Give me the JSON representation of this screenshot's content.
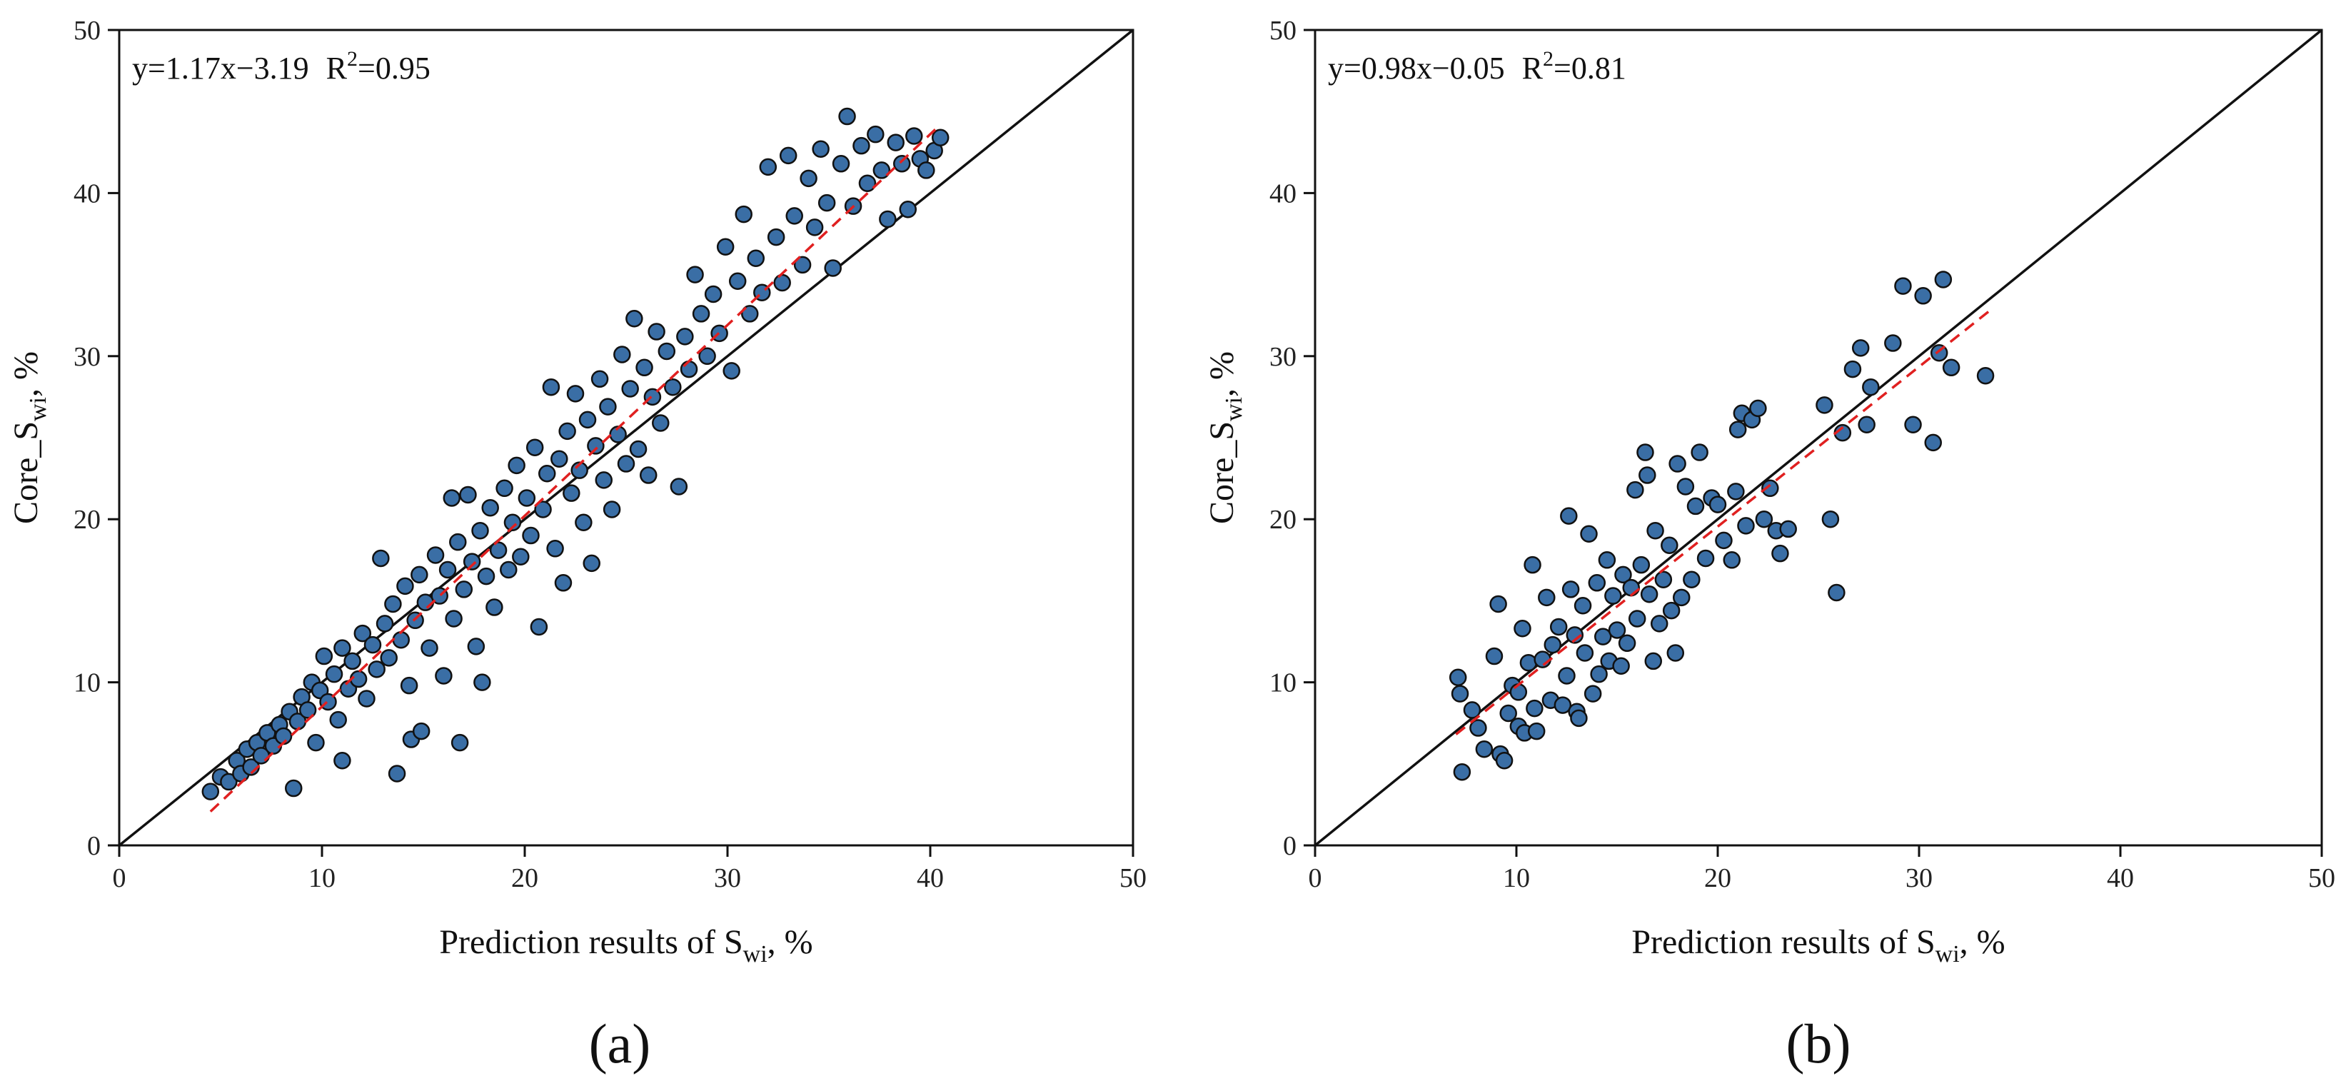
{
  "figure": {
    "panel_labels": [
      "(a)",
      "(b)"
    ]
  },
  "chart_data": [
    {
      "type": "scatter",
      "panel": "(a)",
      "title": "",
      "xlabel_main": "Prediction results of S",
      "xlabel_sub": "wi",
      "xlabel_tail": ", %",
      "ylabel_main": "Core_S",
      "ylabel_sub": "wi",
      "ylabel_tail": ", %",
      "xlim": [
        0,
        50
      ],
      "ylim": [
        0,
        50
      ],
      "xticks": [
        0,
        10,
        20,
        30,
        40,
        50
      ],
      "yticks": [
        0,
        10,
        20,
        30,
        40,
        50
      ],
      "grid": false,
      "equation": "y=1.17x−3.19",
      "r2_label": "R",
      "r2_sup": "2",
      "r2_value": "=0.95",
      "fit": {
        "slope": 1.17,
        "intercept": -3.19,
        "x_range": [
          4.5,
          40.5
        ]
      },
      "identity_line": [
        0,
        50
      ],
      "point_color": "#3a6ea5",
      "fit_color": "#e02020",
      "points": [
        [
          4.5,
          3.3
        ],
        [
          5.0,
          4.2
        ],
        [
          5.4,
          3.9
        ],
        [
          5.8,
          5.2
        ],
        [
          6.0,
          4.4
        ],
        [
          6.3,
          5.9
        ],
        [
          6.5,
          4.8
        ],
        [
          6.8,
          6.3
        ],
        [
          7.0,
          5.5
        ],
        [
          7.3,
          6.9
        ],
        [
          7.6,
          6.1
        ],
        [
          7.9,
          7.4
        ],
        [
          8.1,
          6.7
        ],
        [
          8.4,
          8.2
        ],
        [
          8.6,
          3.5
        ],
        [
          8.8,
          7.6
        ],
        [
          9.0,
          9.1
        ],
        [
          9.3,
          8.3
        ],
        [
          9.5,
          10.0
        ],
        [
          9.7,
          6.3
        ],
        [
          9.9,
          9.5
        ],
        [
          10.1,
          11.6
        ],
        [
          10.3,
          8.8
        ],
        [
          10.6,
          10.5
        ],
        [
          10.8,
          7.7
        ],
        [
          11.0,
          12.1
        ],
        [
          11.0,
          5.2
        ],
        [
          11.3,
          9.6
        ],
        [
          11.5,
          11.3
        ],
        [
          11.8,
          10.2
        ],
        [
          12.0,
          13.0
        ],
        [
          12.2,
          9.0
        ],
        [
          12.5,
          12.3
        ],
        [
          12.7,
          10.8
        ],
        [
          12.9,
          17.6
        ],
        [
          13.1,
          13.6
        ],
        [
          13.3,
          11.5
        ],
        [
          13.5,
          14.8
        ],
        [
          13.7,
          4.4
        ],
        [
          13.9,
          12.6
        ],
        [
          14.1,
          15.9
        ],
        [
          14.3,
          9.8
        ],
        [
          14.4,
          6.5
        ],
        [
          14.6,
          13.8
        ],
        [
          14.8,
          16.6
        ],
        [
          14.9,
          7.0
        ],
        [
          15.1,
          14.9
        ],
        [
          15.3,
          12.1
        ],
        [
          15.6,
          17.8
        ],
        [
          15.8,
          15.3
        ],
        [
          16.0,
          10.4
        ],
        [
          16.2,
          16.9
        ],
        [
          16.4,
          21.3
        ],
        [
          16.5,
          13.9
        ],
        [
          16.7,
          18.6
        ],
        [
          16.8,
          6.3
        ],
        [
          17.0,
          15.7
        ],
        [
          17.2,
          21.5
        ],
        [
          17.4,
          17.4
        ],
        [
          17.6,
          12.2
        ],
        [
          17.8,
          19.3
        ],
        [
          17.9,
          10.0
        ],
        [
          18.1,
          16.5
        ],
        [
          18.3,
          20.7
        ],
        [
          18.5,
          14.6
        ],
        [
          18.7,
          18.1
        ],
        [
          19.0,
          21.9
        ],
        [
          19.2,
          16.9
        ],
        [
          19.4,
          19.8
        ],
        [
          19.6,
          23.3
        ],
        [
          19.8,
          17.7
        ],
        [
          20.1,
          21.3
        ],
        [
          20.3,
          19.0
        ],
        [
          20.5,
          24.4
        ],
        [
          20.7,
          13.4
        ],
        [
          20.9,
          20.6
        ],
        [
          21.1,
          22.8
        ],
        [
          21.3,
          28.1
        ],
        [
          21.5,
          18.2
        ],
        [
          21.7,
          23.7
        ],
        [
          21.9,
          16.1
        ],
        [
          22.1,
          25.4
        ],
        [
          22.3,
          21.6
        ],
        [
          22.5,
          27.7
        ],
        [
          22.7,
          23.0
        ],
        [
          22.9,
          19.8
        ],
        [
          23.1,
          26.1
        ],
        [
          23.3,
          17.3
        ],
        [
          23.5,
          24.5
        ],
        [
          23.7,
          28.6
        ],
        [
          23.9,
          22.4
        ],
        [
          24.1,
          26.9
        ],
        [
          24.3,
          20.6
        ],
        [
          24.6,
          25.2
        ],
        [
          24.8,
          30.1
        ],
        [
          25.0,
          23.4
        ],
        [
          25.2,
          28.0
        ],
        [
          25.4,
          32.3
        ],
        [
          25.6,
          24.3
        ],
        [
          25.9,
          29.3
        ],
        [
          26.1,
          22.7
        ],
        [
          26.3,
          27.5
        ],
        [
          26.5,
          31.5
        ],
        [
          26.7,
          25.9
        ],
        [
          27.0,
          30.3
        ],
        [
          27.3,
          28.1
        ],
        [
          27.6,
          22.0
        ],
        [
          27.9,
          31.2
        ],
        [
          28.1,
          29.2
        ],
        [
          28.4,
          35.0
        ],
        [
          28.7,
          32.6
        ],
        [
          29.0,
          30.0
        ],
        [
          29.3,
          33.8
        ],
        [
          29.6,
          31.4
        ],
        [
          29.9,
          36.7
        ],
        [
          30.2,
          29.1
        ],
        [
          30.5,
          34.6
        ],
        [
          30.8,
          38.7
        ],
        [
          31.1,
          32.6
        ],
        [
          31.4,
          36.0
        ],
        [
          31.7,
          33.9
        ],
        [
          32.0,
          41.6
        ],
        [
          32.4,
          37.3
        ],
        [
          32.7,
          34.5
        ],
        [
          33.0,
          42.3
        ],
        [
          33.3,
          38.6
        ],
        [
          33.7,
          35.6
        ],
        [
          34.0,
          40.9
        ],
        [
          34.3,
          37.9
        ],
        [
          34.6,
          42.7
        ],
        [
          34.9,
          39.4
        ],
        [
          35.2,
          35.4
        ],
        [
          35.6,
          41.8
        ],
        [
          35.9,
          44.7
        ],
        [
          36.2,
          39.2
        ],
        [
          36.6,
          42.9
        ],
        [
          36.9,
          40.6
        ],
        [
          37.3,
          43.6
        ],
        [
          37.6,
          41.4
        ],
        [
          37.9,
          38.4
        ],
        [
          38.3,
          43.1
        ],
        [
          38.6,
          41.8
        ],
        [
          38.9,
          39.0
        ],
        [
          39.2,
          43.5
        ],
        [
          39.5,
          42.1
        ],
        [
          39.8,
          41.4
        ],
        [
          40.2,
          42.6
        ],
        [
          40.5,
          43.4
        ]
      ]
    },
    {
      "type": "scatter",
      "panel": "(b)",
      "title": "",
      "xlabel_main": "Prediction results of S",
      "xlabel_sub": "wi",
      "xlabel_tail": ", %",
      "ylabel_main": "Core_S",
      "ylabel_sub": "wi",
      "ylabel_tail": ", %",
      "xlim": [
        0,
        50
      ],
      "ylim": [
        0,
        50
      ],
      "xticks": [
        0,
        10,
        20,
        30,
        40,
        50
      ],
      "yticks": [
        0,
        10,
        20,
        30,
        40,
        50
      ],
      "grid": false,
      "equation": "y=0.98x−0.05",
      "r2_label": "R",
      "r2_sup": "2",
      "r2_value": "=0.81",
      "fit": {
        "slope": 0.98,
        "intercept": -0.05,
        "x_range": [
          7.0,
          33.5
        ]
      },
      "identity_line": [
        0,
        50
      ],
      "point_color": "#3a6ea5",
      "fit_color": "#e02020",
      "points": [
        [
          7.1,
          10.3
        ],
        [
          7.2,
          9.3
        ],
        [
          7.3,
          4.5
        ],
        [
          7.8,
          8.3
        ],
        [
          8.1,
          7.2
        ],
        [
          8.4,
          5.9
        ],
        [
          8.9,
          11.6
        ],
        [
          9.1,
          14.8
        ],
        [
          9.2,
          5.6
        ],
        [
          9.4,
          5.2
        ],
        [
          9.6,
          8.1
        ],
        [
          9.8,
          9.8
        ],
        [
          10.1,
          9.4
        ],
        [
          10.1,
          7.3
        ],
        [
          10.3,
          13.3
        ],
        [
          10.4,
          6.9
        ],
        [
          10.6,
          11.2
        ],
        [
          10.8,
          17.2
        ],
        [
          10.9,
          8.4
        ],
        [
          11.0,
          7.0
        ],
        [
          11.3,
          11.4
        ],
        [
          11.5,
          15.2
        ],
        [
          11.7,
          8.9
        ],
        [
          11.8,
          12.3
        ],
        [
          12.1,
          13.4
        ],
        [
          12.3,
          8.6
        ],
        [
          12.5,
          10.4
        ],
        [
          12.6,
          20.2
        ],
        [
          12.7,
          15.7
        ],
        [
          12.9,
          12.9
        ],
        [
          13.0,
          8.2
        ],
        [
          13.1,
          7.8
        ],
        [
          13.3,
          14.7
        ],
        [
          13.4,
          11.8
        ],
        [
          13.6,
          19.1
        ],
        [
          13.8,
          9.3
        ],
        [
          14.0,
          16.1
        ],
        [
          14.1,
          10.5
        ],
        [
          14.3,
          12.8
        ],
        [
          14.5,
          17.5
        ],
        [
          14.6,
          11.3
        ],
        [
          14.8,
          15.3
        ],
        [
          15.0,
          13.2
        ],
        [
          15.2,
          11.0
        ],
        [
          15.3,
          16.6
        ],
        [
          15.5,
          12.4
        ],
        [
          15.7,
          15.8
        ],
        [
          15.9,
          21.8
        ],
        [
          16.0,
          13.9
        ],
        [
          16.2,
          17.2
        ],
        [
          16.4,
          24.1
        ],
        [
          16.5,
          22.7
        ],
        [
          16.6,
          15.4
        ],
        [
          16.8,
          11.3
        ],
        [
          16.9,
          19.3
        ],
        [
          17.1,
          13.6
        ],
        [
          17.3,
          16.3
        ],
        [
          17.6,
          18.4
        ],
        [
          17.7,
          14.4
        ],
        [
          17.9,
          11.8
        ],
        [
          18.0,
          23.4
        ],
        [
          18.2,
          15.2
        ],
        [
          18.4,
          22.0
        ],
        [
          18.7,
          16.3
        ],
        [
          18.9,
          20.8
        ],
        [
          19.1,
          24.1
        ],
        [
          19.4,
          17.6
        ],
        [
          19.7,
          21.3
        ],
        [
          20.0,
          20.9
        ],
        [
          20.3,
          18.7
        ],
        [
          20.7,
          17.5
        ],
        [
          20.9,
          21.7
        ],
        [
          21.0,
          25.5
        ],
        [
          21.2,
          26.5
        ],
        [
          21.4,
          19.6
        ],
        [
          21.7,
          26.1
        ],
        [
          22.0,
          26.8
        ],
        [
          22.3,
          20.0
        ],
        [
          22.6,
          21.9
        ],
        [
          22.9,
          19.3
        ],
        [
          23.1,
          17.9
        ],
        [
          23.5,
          19.4
        ],
        [
          25.3,
          27.0
        ],
        [
          25.6,
          20.0
        ],
        [
          25.9,
          15.5
        ],
        [
          26.2,
          25.3
        ],
        [
          26.7,
          29.2
        ],
        [
          27.1,
          30.5
        ],
        [
          27.4,
          25.8
        ],
        [
          27.6,
          28.1
        ],
        [
          28.7,
          30.8
        ],
        [
          29.2,
          34.3
        ],
        [
          29.7,
          25.8
        ],
        [
          30.2,
          33.7
        ],
        [
          30.7,
          24.7
        ],
        [
          31.0,
          30.2
        ],
        [
          31.2,
          34.7
        ],
        [
          31.6,
          29.3
        ],
        [
          33.3,
          28.8
        ]
      ]
    }
  ]
}
